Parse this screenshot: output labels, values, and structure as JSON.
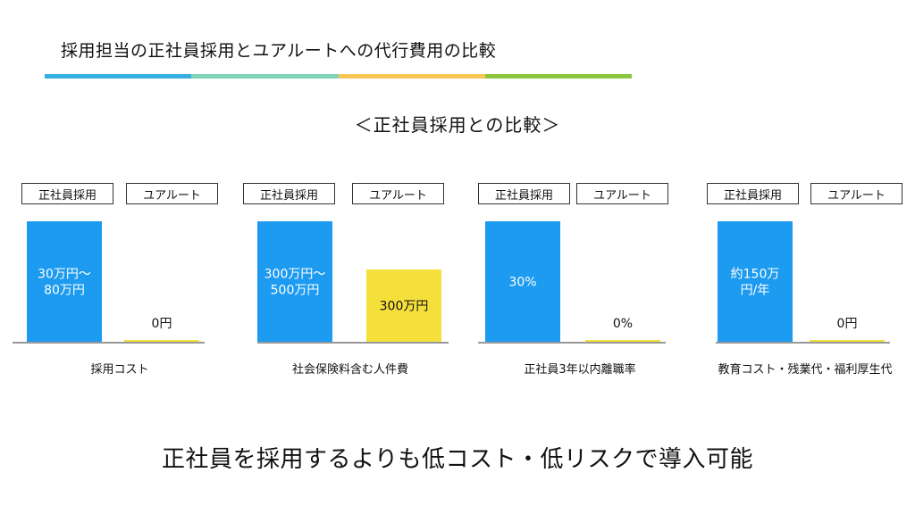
{
  "page_title": "採用担当の正社員採用とユアルートへの代行費用の比較",
  "accent_colors": [
    "#35AEE0",
    "#7FD3B8",
    "#F6C555",
    "#8DC63F"
  ],
  "section_title": "＜正社員採用との比較＞",
  "footer": "正社員を採用するよりも低コスト・低リスクで導入可能",
  "colors": {
    "regular": "#1D9BF0",
    "yuroot": "#F5DF3B"
  },
  "chart_data": [
    {
      "type": "bar",
      "xlabel": "採用コスト",
      "categories": [
        "正社員採用",
        "ユアルート"
      ],
      "values": [
        80,
        0
      ],
      "ylim": [
        0,
        80
      ],
      "labels": [
        "30万円～\n80万円",
        "0円"
      ]
    },
    {
      "type": "bar",
      "xlabel": "社会保険料含む人件費",
      "categories": [
        "正社員採用",
        "ユアルート"
      ],
      "values": [
        500,
        300
      ],
      "ylim": [
        0,
        500
      ],
      "labels": [
        "300万円～\n500万円",
        "300万円"
      ]
    },
    {
      "type": "bar",
      "xlabel": "正社員3年以内離職率",
      "categories": [
        "正社員採用",
        "ユアルート"
      ],
      "values": [
        30,
        0
      ],
      "ylim": [
        0,
        30
      ],
      "labels": [
        "30%",
        "0%"
      ]
    },
    {
      "type": "bar",
      "xlabel": "教育コスト・残業代・福利厚生代",
      "categories": [
        "正社員採用",
        "ユアルート"
      ],
      "values": [
        150,
        0
      ],
      "ylim": [
        0,
        150
      ],
      "labels": [
        "約150万\n円/年",
        "0円"
      ]
    }
  ]
}
